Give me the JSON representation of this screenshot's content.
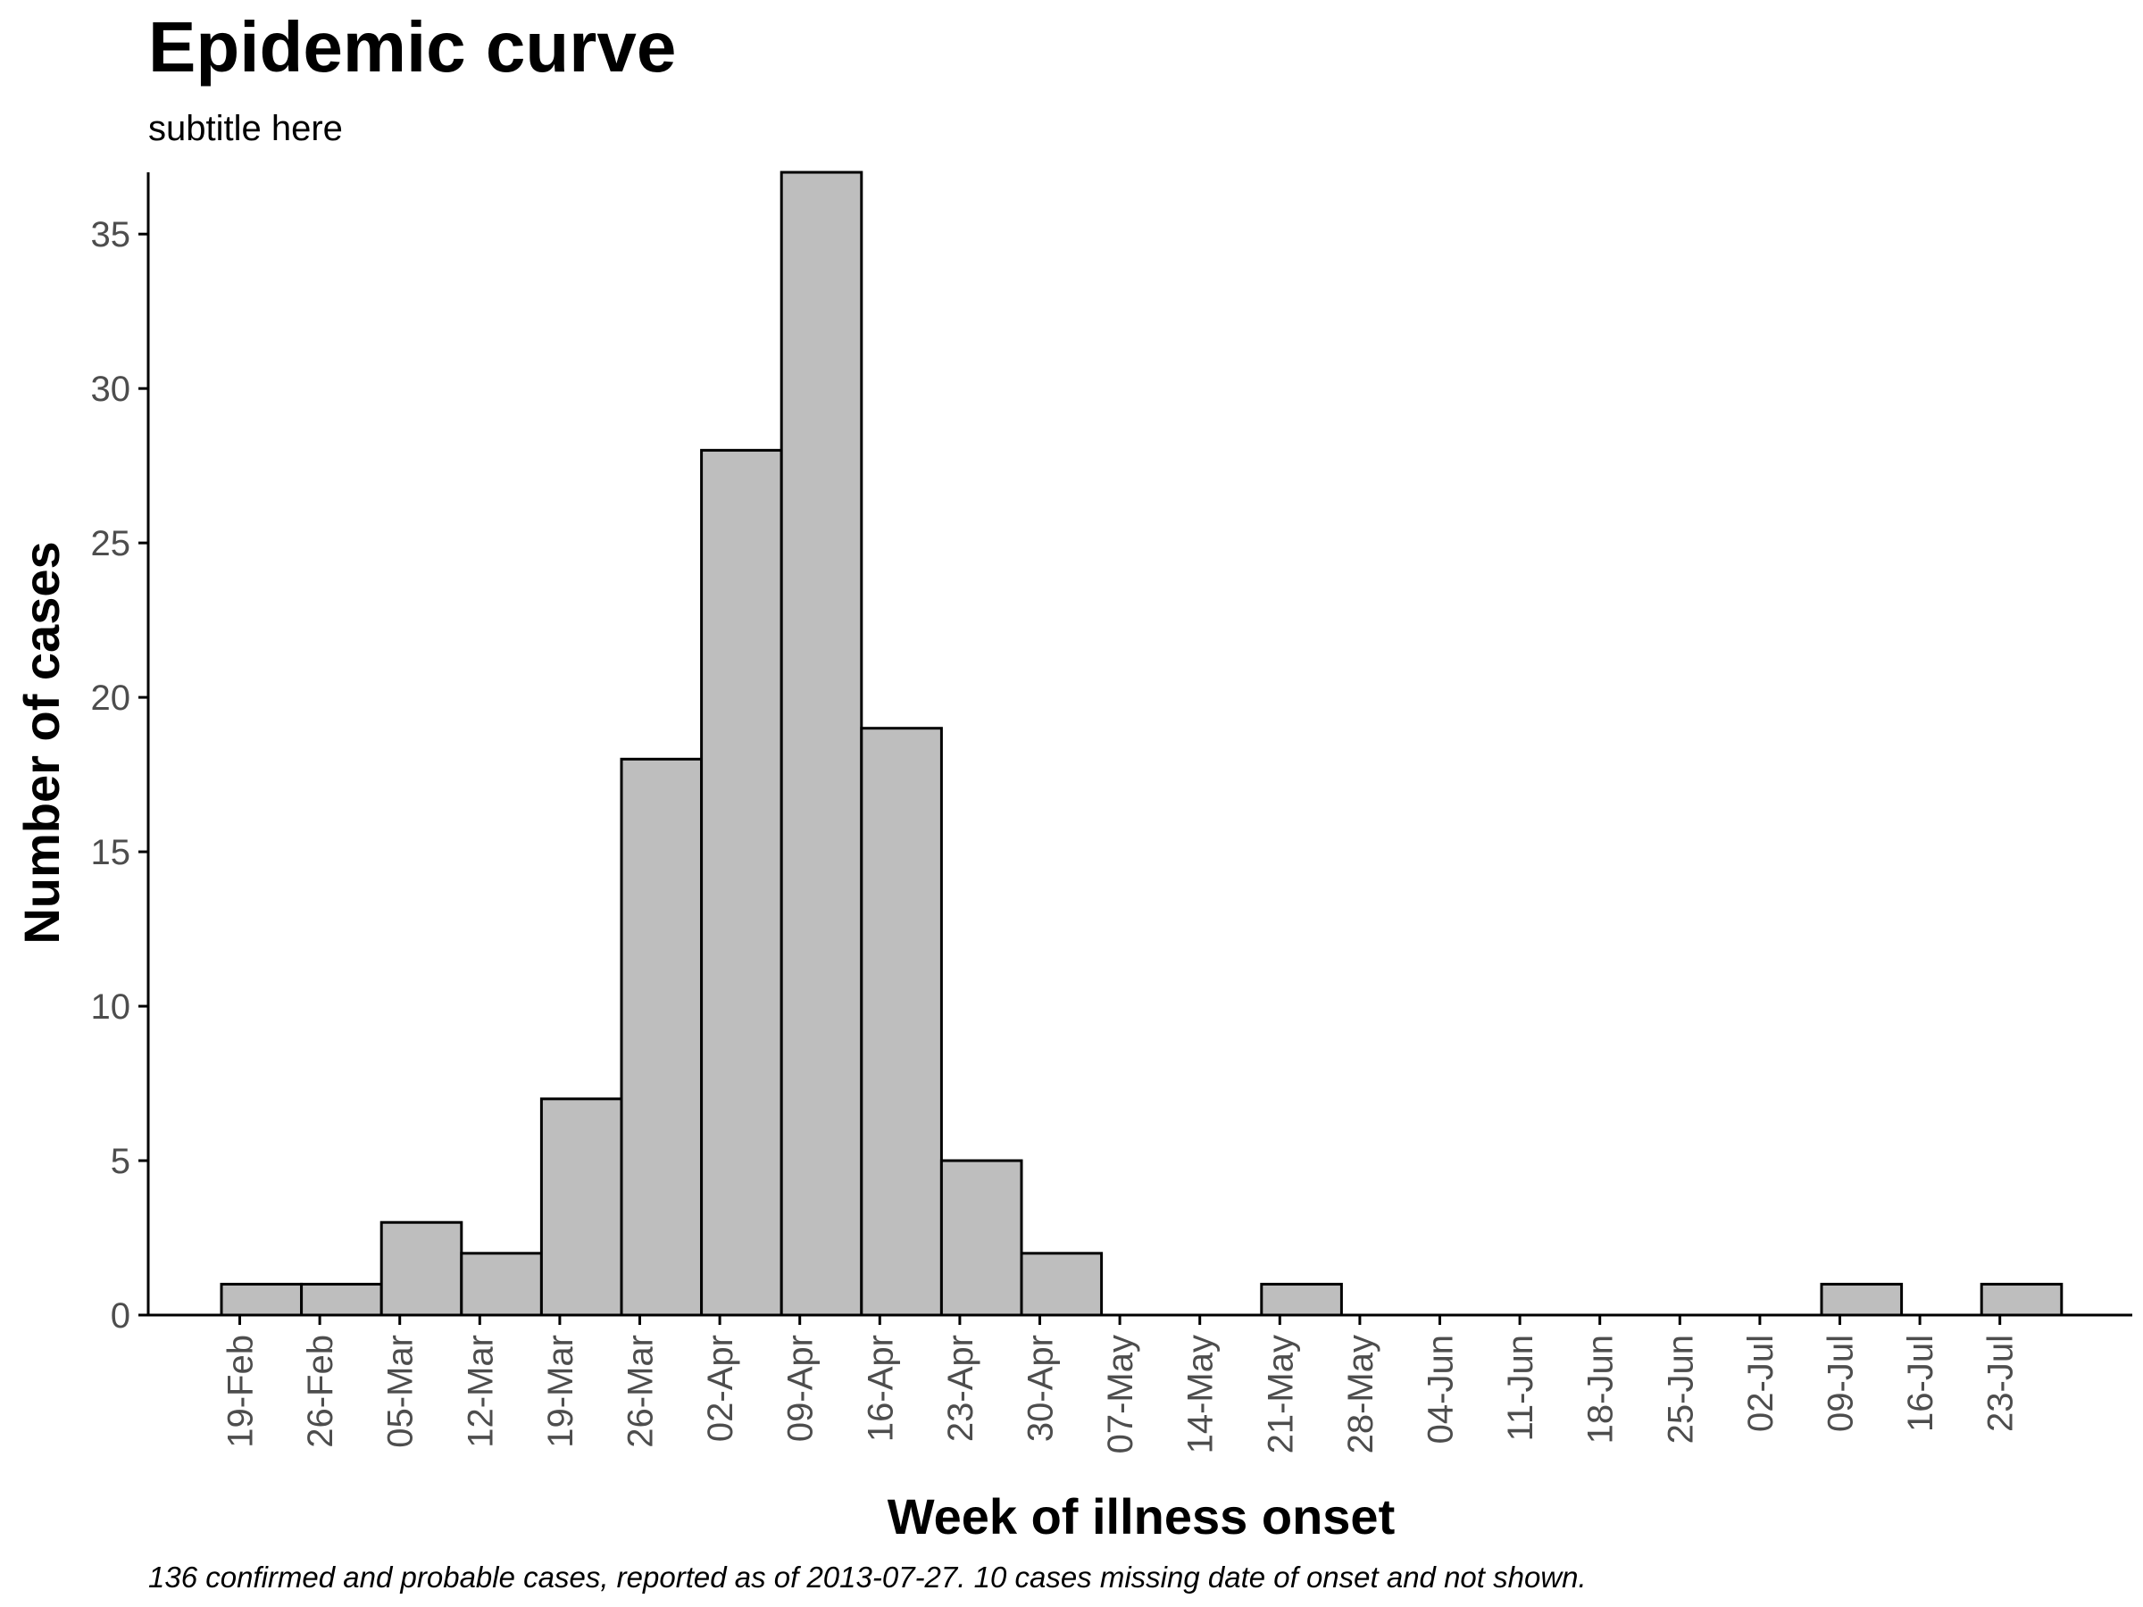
{
  "chart_data": {
    "type": "bar",
    "title": "Epidemic curve",
    "subtitle": "subtitle here",
    "xlabel": "Week of illness onset",
    "ylabel": "Number of cases",
    "caption": "136 confirmed and probable cases, reported as of 2013-07-27. 10 cases missing date of onset and not shown.",
    "ylim": [
      0,
      37
    ],
    "yticks": [
      0,
      5,
      10,
      15,
      20,
      25,
      30,
      35
    ],
    "x_tick_labels": [
      "19-Feb",
      "26-Feb",
      "05-Mar",
      "12-Mar",
      "19-Mar",
      "26-Mar",
      "02-Apr",
      "09-Apr",
      "16-Apr",
      "23-Apr",
      "30-Apr",
      "07-May",
      "14-May",
      "21-May",
      "28-May",
      "04-Jun",
      "11-Jun",
      "18-Jun",
      "25-Jun",
      "02-Jul",
      "09-Jul",
      "16-Jul",
      "23-Jul"
    ],
    "bins": [
      {
        "start": "2013-02-18",
        "end": "2013-02-25",
        "value": 1
      },
      {
        "start": "2013-02-25",
        "end": "2013-03-04",
        "value": 1
      },
      {
        "start": "2013-03-04",
        "end": "2013-03-11",
        "value": 3
      },
      {
        "start": "2013-03-11",
        "end": "2013-03-18",
        "value": 2
      },
      {
        "start": "2013-03-18",
        "end": "2013-03-25",
        "value": 7
      },
      {
        "start": "2013-03-25",
        "end": "2013-04-01",
        "value": 18
      },
      {
        "start": "2013-04-01",
        "end": "2013-04-08",
        "value": 28
      },
      {
        "start": "2013-04-08",
        "end": "2013-04-15",
        "value": 37
      },
      {
        "start": "2013-04-15",
        "end": "2013-04-22",
        "value": 19
      },
      {
        "start": "2013-04-22",
        "end": "2013-04-29",
        "value": 5
      },
      {
        "start": "2013-04-29",
        "end": "2013-05-06",
        "value": 2
      },
      {
        "start": "2013-05-06",
        "end": "2013-05-13",
        "value": 0
      },
      {
        "start": "2013-05-13",
        "end": "2013-05-20",
        "value": 0
      },
      {
        "start": "2013-05-20",
        "end": "2013-05-27",
        "value": 1
      },
      {
        "start": "2013-05-27",
        "end": "2013-06-03",
        "value": 0
      },
      {
        "start": "2013-06-03",
        "end": "2013-06-10",
        "value": 0
      },
      {
        "start": "2013-06-10",
        "end": "2013-06-17",
        "value": 0
      },
      {
        "start": "2013-06-17",
        "end": "2013-06-24",
        "value": 0
      },
      {
        "start": "2013-06-24",
        "end": "2013-07-01",
        "value": 0
      },
      {
        "start": "2013-07-01",
        "end": "2013-07-08",
        "value": 0
      },
      {
        "start": "2013-07-08",
        "end": "2013-07-15",
        "value": 1
      },
      {
        "start": "2013-07-15",
        "end": "2013-07-22",
        "value": 0
      },
      {
        "start": "2013-07-22",
        "end": "2013-07-29",
        "value": 1
      }
    ],
    "colors": {
      "bar_fill": "#bebebe",
      "bar_stroke": "#000000",
      "axis": "#000000",
      "tick_label": "#4d4d4d"
    },
    "grid": false,
    "legend": "none"
  }
}
